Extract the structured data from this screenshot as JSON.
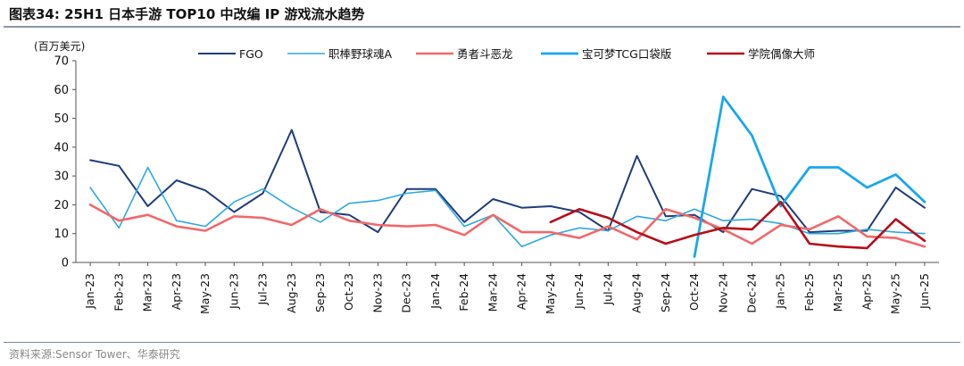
{
  "figure": {
    "title": "图表34:  25H1 日本手游 TOP10 中改编 IP 游戏流水趋势",
    "source": "资料来源:Sensor Tower、华泰研究"
  },
  "chart_data": {
    "type": "line",
    "unit_label": "(百万美元)",
    "ylim": [
      0,
      70
    ],
    "yticks": [
      0,
      10,
      20,
      30,
      40,
      50,
      60,
      70
    ],
    "grid": false,
    "legend_position": "top",
    "categories": [
      "Jan-23",
      "Feb-23",
      "Mar-23",
      "Apr-23",
      "May-23",
      "Jun-23",
      "Jul-23",
      "Aug-23",
      "Sep-23",
      "Oct-23",
      "Nov-23",
      "Dec-23",
      "Jan-24",
      "Feb-24",
      "Mar-24",
      "Apr-24",
      "May-24",
      "Jun-24",
      "Jul-24",
      "Aug-24",
      "Sep-24",
      "Oct-24",
      "Nov-24",
      "Dec-24",
      "Jan-25",
      "Feb-25",
      "Mar-25",
      "Apr-25",
      "May-25",
      "Jun-25"
    ],
    "series": [
      {
        "name": "FGO",
        "color": "#1f3d7a",
        "width": 2,
        "values": [
          35.5,
          33.5,
          19.5,
          28.5,
          25,
          17.5,
          24,
          46,
          17.5,
          16.5,
          10.5,
          25.5,
          25.5,
          14,
          22,
          19,
          19.5,
          17.5,
          11,
          37,
          16,
          16.5,
          10.5,
          25.5,
          23,
          10.5,
          11,
          11,
          26,
          19
        ]
      },
      {
        "name": "职棒野球魂A",
        "color": "#2fa8e0",
        "width": 1.6,
        "values": [
          26,
          12,
          33,
          14.5,
          12.5,
          21,
          25.5,
          19,
          14,
          20.5,
          21.5,
          24,
          25,
          12.5,
          16.5,
          5.5,
          9.5,
          12,
          11,
          16,
          14.5,
          18.5,
          14.5,
          15,
          13.5,
          10,
          10,
          11.5,
          10.5,
          10
        ]
      },
      {
        "name": "勇者斗恶龙",
        "color": "#f0696b",
        "width": 2.6,
        "values": [
          20,
          14.5,
          16.5,
          12.5,
          11,
          16,
          15.5,
          13,
          18.5,
          14.5,
          13,
          12.5,
          13,
          9.5,
          16.5,
          10.5,
          10.5,
          8.5,
          12.5,
          8,
          18.5,
          15.5,
          11.5,
          6.5,
          13,
          11.5,
          16,
          9,
          8.5,
          5.5
        ]
      },
      {
        "name": "宝可梦TCG口袋版",
        "color": "#1aa7ec",
        "width": 2.8,
        "values": [
          null,
          null,
          null,
          null,
          null,
          null,
          null,
          null,
          null,
          null,
          null,
          null,
          null,
          null,
          null,
          null,
          null,
          null,
          null,
          null,
          null,
          2,
          57.5,
          44,
          19.5,
          33,
          33,
          26,
          30.5,
          21
        ]
      },
      {
        "name": "学院偶像大师",
        "color": "#b50f1a",
        "width": 2.6,
        "values": [
          null,
          null,
          null,
          null,
          null,
          null,
          null,
          null,
          null,
          null,
          null,
          null,
          null,
          null,
          null,
          null,
          14,
          18.5,
          15.5,
          10.5,
          6.5,
          9.5,
          12,
          11.5,
          21,
          6.5,
          5.5,
          5,
          15,
          7.5
        ]
      }
    ]
  }
}
